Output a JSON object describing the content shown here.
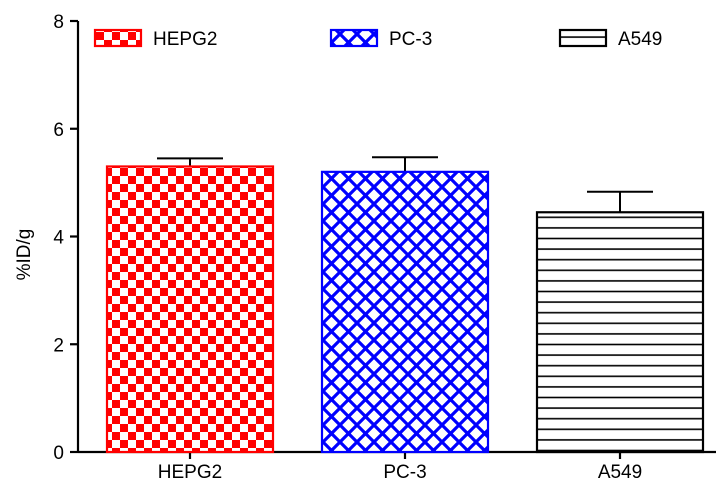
{
  "chart_data": {
    "type": "bar",
    "title": "",
    "xlabel": "",
    "ylabel": "%ID/g",
    "ylim": [
      0,
      8
    ],
    "yticks": [
      0,
      2,
      4,
      6,
      8
    ],
    "grid": false,
    "legend_position": "top",
    "categories": [
      "HEPG2",
      "PC-3",
      "A549"
    ],
    "values": [
      5.3,
      5.2,
      4.45
    ],
    "errors": [
      0.15,
      0.27,
      0.38
    ],
    "series_styles": [
      {
        "name": "HEPG2",
        "pattern": "checker",
        "color": "#ff0000"
      },
      {
        "name": "PC-3",
        "pattern": "crosshatch",
        "color": "#0000ff"
      },
      {
        "name": "A549",
        "pattern": "horizontal-lines",
        "color": "#000000"
      }
    ],
    "legend": [
      {
        "label": "HEPG2",
        "pattern": "checker",
        "color": "#ff0000"
      },
      {
        "label": "PC-3",
        "pattern": "crosshatch",
        "color": "#0000ff"
      },
      {
        "label": "A549",
        "pattern": "horizontal-lines",
        "color": "#000000"
      }
    ]
  }
}
